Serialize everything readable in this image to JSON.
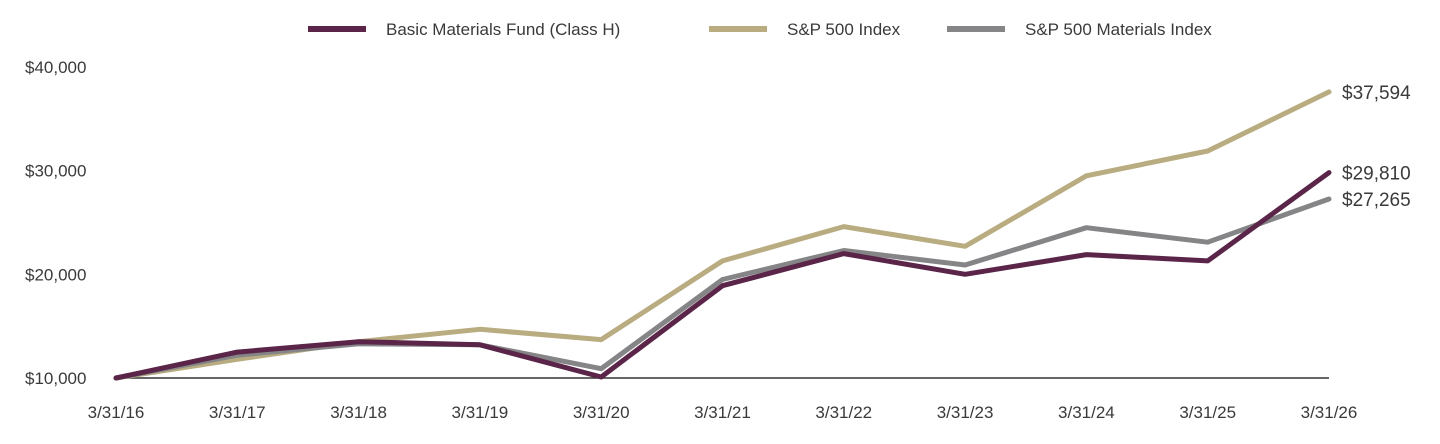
{
  "chart_data": {
    "type": "line",
    "categories": [
      "3/31/16",
      "3/31/17",
      "3/31/18",
      "3/31/19",
      "3/31/20",
      "3/31/21",
      "3/31/22",
      "3/31/23",
      "3/31/24",
      "3/31/25",
      "3/31/26"
    ],
    "yticks": [
      "$10,000",
      "$20,000",
      "$30,000",
      "$40,000"
    ],
    "ytick_values": [
      10000,
      20000,
      30000,
      40000
    ],
    "ylim": [
      10000,
      40000
    ],
    "grid": false,
    "legend_position": "top",
    "series": [
      {
        "name": "Basic Materials Fund (Class H)",
        "color": "#5a2548",
        "values": [
          10000,
          12500,
          13500,
          13200,
          10100,
          18900,
          22000,
          20000,
          21900,
          21300,
          29810
        ],
        "end_label": "$29,810"
      },
      {
        "name": "S&P 500 Index",
        "color": "#b9ac80",
        "values": [
          10000,
          11800,
          13500,
          14700,
          13700,
          21300,
          24600,
          22700,
          29500,
          31900,
          37594
        ],
        "end_label": "$37,594"
      },
      {
        "name": "S&P 500 Materials Index",
        "color": "#858587",
        "values": [
          10000,
          12200,
          13300,
          13200,
          10900,
          19500,
          22300,
          20900,
          24500,
          23100,
          27265
        ],
        "end_label": "$27,265"
      }
    ]
  }
}
